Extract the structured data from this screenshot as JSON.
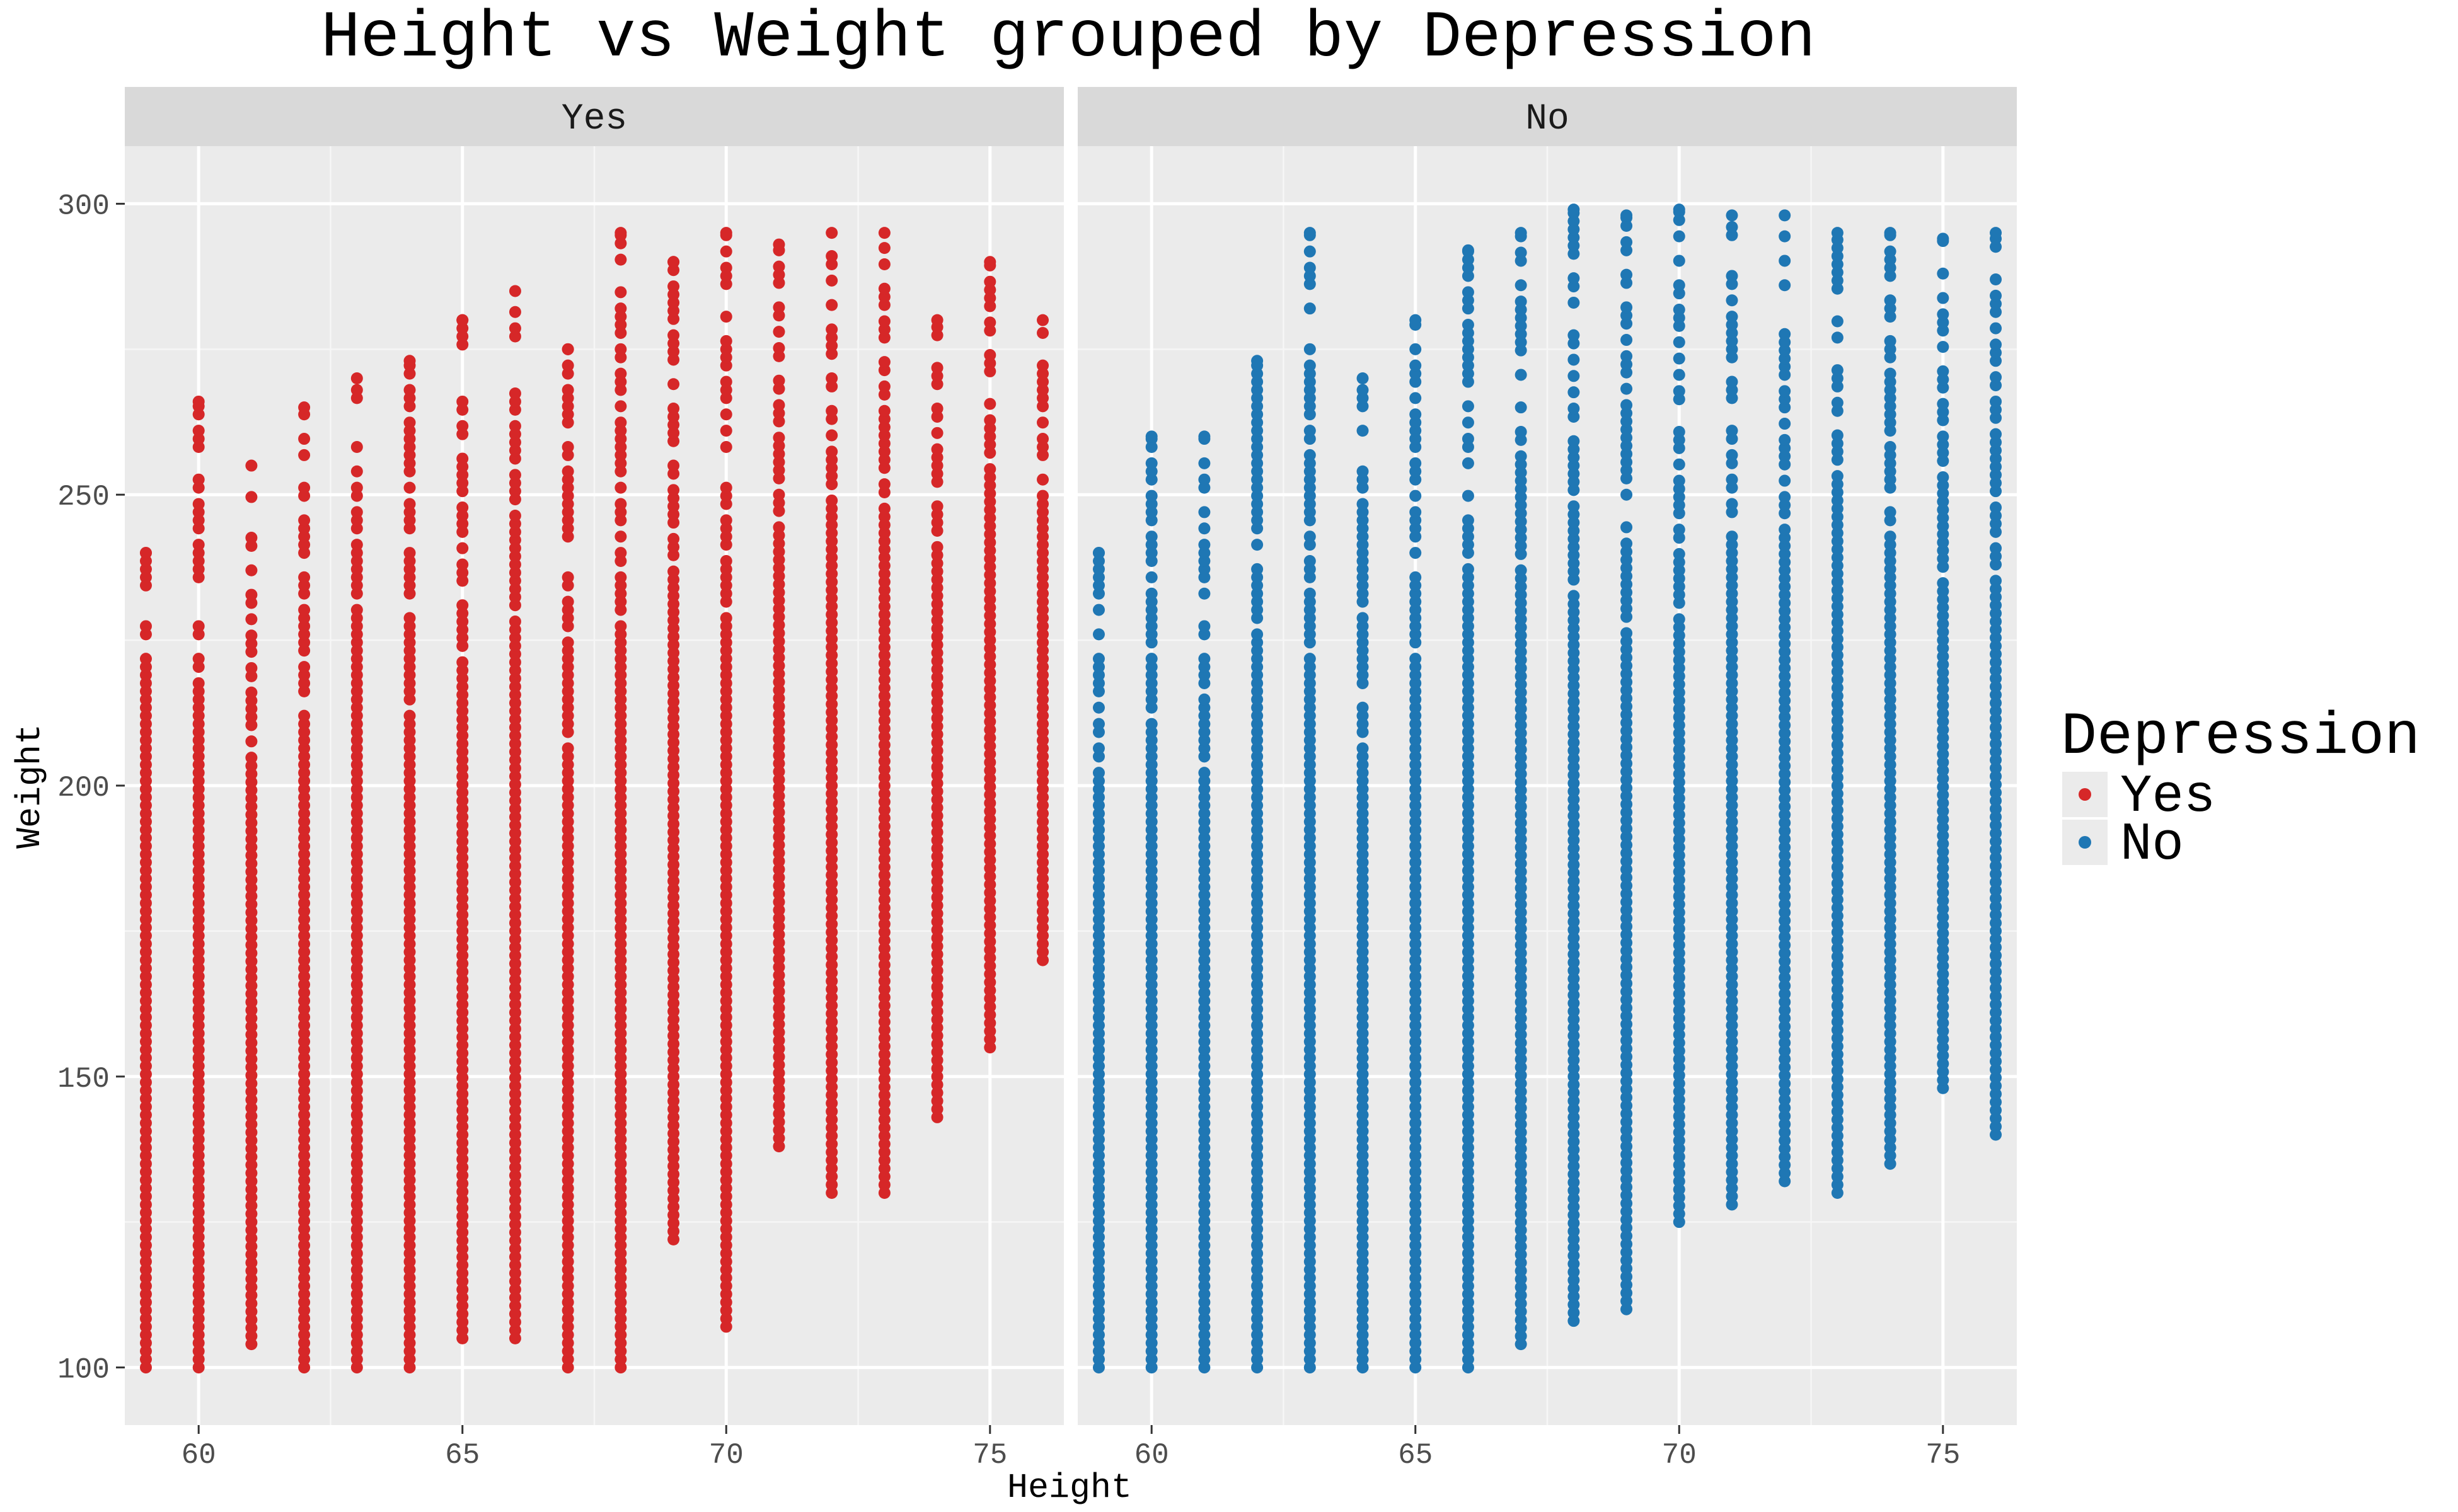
{
  "chart_data": {
    "type": "scatter",
    "title": "Height vs Weight grouped by Depression",
    "xlabel": "Height",
    "ylabel": "Weight",
    "facet_variable": "Depression",
    "xlim": [
      58.6,
      76.4
    ],
    "ylim": [
      90.1,
      309.9
    ],
    "x_ticks": [
      60,
      65,
      70,
      75
    ],
    "y_ticks": [
      100,
      150,
      200,
      250,
      300
    ],
    "grid": true,
    "legend": {
      "title": "Depression",
      "placement": "right",
      "entries": [
        {
          "label": "Yes",
          "color": "#d62728"
        },
        {
          "label": "No",
          "color": "#1f77b4"
        }
      ]
    },
    "panels": [
      {
        "label": "Yes",
        "color": "#d62728",
        "columns": [
          {
            "x": 59,
            "ymin": 100,
            "ymax": 240
          },
          {
            "x": 60,
            "ymin": 100,
            "ymax": 266
          },
          {
            "x": 61,
            "ymin": 104,
            "ymax": 255
          },
          {
            "x": 62,
            "ymin": 100,
            "ymax": 265
          },
          {
            "x": 63,
            "ymin": 100,
            "ymax": 270
          },
          {
            "x": 64,
            "ymin": 100,
            "ymax": 273
          },
          {
            "x": 65,
            "ymin": 105,
            "ymax": 280
          },
          {
            "x": 66,
            "ymin": 105,
            "ymax": 285
          },
          {
            "x": 67,
            "ymin": 100,
            "ymax": 275
          },
          {
            "x": 68,
            "ymin": 100,
            "ymax": 295
          },
          {
            "x": 69,
            "ymin": 122,
            "ymax": 290
          },
          {
            "x": 70,
            "ymin": 107,
            "ymax": 295
          },
          {
            "x": 71,
            "ymin": 138,
            "ymax": 293
          },
          {
            "x": 72,
            "ymin": 130,
            "ymax": 295
          },
          {
            "x": 73,
            "ymin": 130,
            "ymax": 295
          },
          {
            "x": 74,
            "ymin": 143,
            "ymax": 280
          },
          {
            "x": 75,
            "ymin": 155,
            "ymax": 290
          },
          {
            "x": 76,
            "ymin": 170,
            "ymax": 280
          }
        ]
      },
      {
        "label": "No",
        "color": "#1f77b4",
        "columns": [
          {
            "x": 59,
            "ymin": 100,
            "ymax": 240
          },
          {
            "x": 60,
            "ymin": 100,
            "ymax": 260
          },
          {
            "x": 61,
            "ymin": 100,
            "ymax": 260
          },
          {
            "x": 62,
            "ymin": 100,
            "ymax": 273
          },
          {
            "x": 63,
            "ymin": 100,
            "ymax": 295
          },
          {
            "x": 64,
            "ymin": 100,
            "ymax": 270
          },
          {
            "x": 65,
            "ymin": 100,
            "ymax": 280
          },
          {
            "x": 66,
            "ymin": 100,
            "ymax": 292
          },
          {
            "x": 67,
            "ymin": 104,
            "ymax": 295
          },
          {
            "x": 68,
            "ymin": 108,
            "ymax": 299
          },
          {
            "x": 69,
            "ymin": 110,
            "ymax": 298
          },
          {
            "x": 70,
            "ymin": 125,
            "ymax": 299
          },
          {
            "x": 71,
            "ymin": 128,
            "ymax": 298
          },
          {
            "x": 72,
            "ymin": 132,
            "ymax": 298
          },
          {
            "x": 73,
            "ymin": 130,
            "ymax": 295
          },
          {
            "x": 74,
            "ymin": 135,
            "ymax": 295
          },
          {
            "x": 75,
            "ymin": 148,
            "ymax": 294
          },
          {
            "x": 76,
            "ymin": 140,
            "ymax": 295
          }
        ]
      }
    ]
  }
}
